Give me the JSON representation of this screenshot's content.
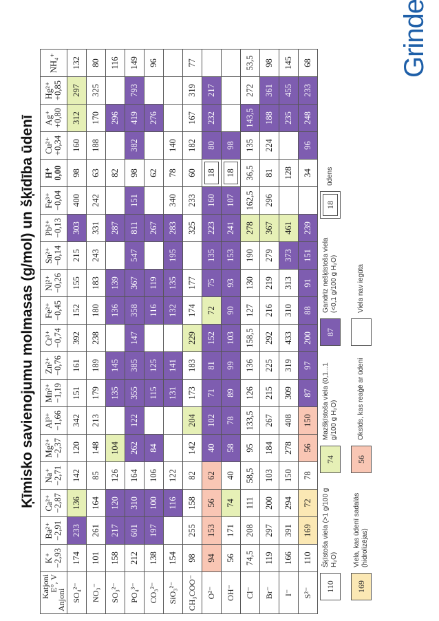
{
  "title": "Ķīmisko savienojumu molmasas (g/mol) un šķīdība ūdenī",
  "logo": "Grindex",
  "corner": {
    "top": "Katjoni",
    "sub": "E°, V",
    "bottom": "Anjoni"
  },
  "cations": [
    {
      "ion": "K⁺",
      "e": "−2,93"
    },
    {
      "ion": "Ba²⁺",
      "e": "−2,91"
    },
    {
      "ion": "Ca²⁺",
      "e": "−2,87"
    },
    {
      "ion": "Na⁺",
      "e": "−2,71"
    },
    {
      "ion": "Mg²⁺",
      "e": "−2,37"
    },
    {
      "ion": "Al³⁺",
      "e": "−1,66"
    },
    {
      "ion": "Mn²⁺",
      "e": "−1,19"
    },
    {
      "ion": "Zn²⁺",
      "e": "−0,76"
    },
    {
      "ion": "Cr³⁺",
      "e": "−0,74"
    },
    {
      "ion": "Fe²⁺",
      "e": "−0,45"
    },
    {
      "ion": "Ni²⁺",
      "e": "−0,26"
    },
    {
      "ion": "Sn²⁺",
      "e": "−0,14"
    },
    {
      "ion": "Pb²⁺",
      "e": "−0,13"
    },
    {
      "ion": "Fe³⁺",
      "e": "−0,04"
    },
    {
      "ion": "H⁺",
      "e": "0,00"
    },
    {
      "ion": "Cu²⁺",
      "e": "+0,34"
    },
    {
      "ion": "Ag⁺",
      "e": "+0,80"
    },
    {
      "ion": "Hg²⁺",
      "e": "+0,85"
    },
    {
      "ion": "NH₄⁺",
      "e": ""
    }
  ],
  "rows": [
    {
      "anion": "SO₄²⁻",
      "cells": [
        [
          "174",
          "s"
        ],
        [
          "233",
          "m"
        ],
        [
          "136",
          "g"
        ],
        [
          "142",
          "s"
        ],
        [
          "120",
          "s"
        ],
        [
          "342",
          "s"
        ],
        [
          "151",
          "s"
        ],
        [
          "161",
          "s"
        ],
        [
          "392",
          "s"
        ],
        [
          "152",
          "s"
        ],
        [
          "155",
          "s"
        ],
        [
          "215",
          "s"
        ],
        [
          "303",
          "m"
        ],
        [
          "400",
          "s"
        ],
        [
          "98",
          "s"
        ],
        [
          "160",
          "s"
        ],
        [
          "312",
          "g"
        ],
        [
          "297",
          "g"
        ],
        [
          "132",
          "s"
        ]
      ]
    },
    {
      "anion": "NO₃⁻",
      "cells": [
        [
          "101",
          "s"
        ],
        [
          "261",
          "s"
        ],
        [
          "164",
          "s"
        ],
        [
          "85",
          "s"
        ],
        [
          "148",
          "s"
        ],
        [
          "213",
          "s"
        ],
        [
          "179",
          "s"
        ],
        [
          "189",
          "s"
        ],
        [
          "238",
          "s"
        ],
        [
          "180",
          "s"
        ],
        [
          "183",
          "s"
        ],
        [
          "243",
          "s"
        ],
        [
          "331",
          "s"
        ],
        [
          "242",
          "s"
        ],
        [
          "63",
          "s"
        ],
        [
          "188",
          "s"
        ],
        [
          "170",
          "s"
        ],
        [
          "325",
          "s"
        ],
        [
          "80",
          "s"
        ]
      ]
    },
    {
      "anion": "SO₃²⁻",
      "cells": [
        [
          "158",
          "s"
        ],
        [
          "217",
          "m"
        ],
        [
          "120",
          "m"
        ],
        [
          "126",
          "s"
        ],
        [
          "104",
          "g"
        ],
        [
          "",
          "n"
        ],
        [
          "135",
          "m"
        ],
        [
          "145",
          "m"
        ],
        [
          "",
          "n"
        ],
        [
          "136",
          "m"
        ],
        [
          "139",
          "m"
        ],
        [
          "",
          "n"
        ],
        [
          "287",
          "m"
        ],
        [
          "",
          "n"
        ],
        [
          "82",
          "s"
        ],
        [
          "",
          "n"
        ],
        [
          "296",
          "m"
        ],
        [
          "",
          "n"
        ],
        [
          "116",
          "s"
        ]
      ]
    },
    {
      "anion": "PO₄³⁻",
      "cells": [
        [
          "212",
          "s"
        ],
        [
          "601",
          "m"
        ],
        [
          "310",
          "m"
        ],
        [
          "164",
          "s"
        ],
        [
          "262",
          "m"
        ],
        [
          "122",
          "m"
        ],
        [
          "355",
          "m"
        ],
        [
          "385",
          "m"
        ],
        [
          "147",
          "m"
        ],
        [
          "358",
          "m"
        ],
        [
          "367",
          "m"
        ],
        [
          "547",
          "m"
        ],
        [
          "811",
          "m"
        ],
        [
          "151",
          "m"
        ],
        [
          "98",
          "s"
        ],
        [
          "382",
          "m"
        ],
        [
          "419",
          "m"
        ],
        [
          "793",
          "m"
        ],
        [
          "149",
          "s"
        ]
      ]
    },
    {
      "anion": "CO₃²⁻",
      "cells": [
        [
          "138",
          "s"
        ],
        [
          "197",
          "m"
        ],
        [
          "100",
          "m"
        ],
        [
          "106",
          "s"
        ],
        [
          "84",
          "m"
        ],
        [
          "",
          "n"
        ],
        [
          "115",
          "m"
        ],
        [
          "125",
          "m"
        ],
        [
          "",
          "n"
        ],
        [
          "116",
          "m"
        ],
        [
          "119",
          "m"
        ],
        [
          "",
          "n"
        ],
        [
          "267",
          "m"
        ],
        [
          "",
          "n"
        ],
        [
          "62",
          "s"
        ],
        [
          "",
          "n"
        ],
        [
          "276",
          "m"
        ],
        [
          "",
          "n"
        ],
        [
          "96",
          "s"
        ]
      ]
    },
    {
      "anion": "SiO₃²⁻",
      "cells": [
        [
          "154",
          "s"
        ],
        [
          "",
          "n"
        ],
        [
          "116",
          "m"
        ],
        [
          "122",
          "s"
        ],
        [
          "",
          "n"
        ],
        [
          "",
          "n"
        ],
        [
          "131",
          "m"
        ],
        [
          "141",
          "m"
        ],
        [
          "",
          "n"
        ],
        [
          "132",
          "m"
        ],
        [
          "135",
          "m"
        ],
        [
          "195",
          "m"
        ],
        [
          "283",
          "m"
        ],
        [
          "340",
          "s"
        ],
        [
          "78",
          "s"
        ],
        [
          "140",
          "s"
        ],
        [
          "",
          "n"
        ],
        [
          "",
          "n"
        ],
        [
          "",
          "n"
        ]
      ]
    },
    {
      "anion": "CH₃COO⁻",
      "cells": [
        [
          "98",
          "s"
        ],
        [
          "255",
          "s"
        ],
        [
          "158",
          "s"
        ],
        [
          "82",
          "s"
        ],
        [
          "142",
          "s"
        ],
        [
          "204",
          "g"
        ],
        [
          "173",
          "s"
        ],
        [
          "183",
          "s"
        ],
        [
          "229",
          "g"
        ],
        [
          "174",
          "s"
        ],
        [
          "177",
          "s"
        ],
        [
          "",
          "n"
        ],
        [
          "325",
          "s"
        ],
        [
          "233",
          "s"
        ],
        [
          "60",
          "s"
        ],
        [
          "182",
          "s"
        ],
        [
          "167",
          "s"
        ],
        [
          "319",
          "s"
        ],
        [
          "77",
          "s"
        ]
      ]
    },
    {
      "anion": "O²⁻",
      "cells": [
        [
          "94",
          "o"
        ],
        [
          "153",
          "o"
        ],
        [
          "56",
          "o"
        ],
        [
          "62",
          "o"
        ],
        [
          "40",
          "m"
        ],
        [
          "102",
          "m"
        ],
        [
          "71",
          "m"
        ],
        [
          "81",
          "m"
        ],
        [
          "152",
          "m"
        ],
        [
          "72",
          "g"
        ],
        [
          "75",
          "m"
        ],
        [
          "135",
          "m"
        ],
        [
          "223",
          "m"
        ],
        [
          "160",
          "m"
        ],
        [
          "18",
          "w"
        ],
        [
          "80",
          "m"
        ],
        [
          "232",
          "m"
        ],
        [
          "217",
          "m"
        ],
        [
          "",
          "n"
        ]
      ]
    },
    {
      "anion": "OH⁻",
      "cells": [
        [
          "56",
          "s"
        ],
        [
          "171",
          "s"
        ],
        [
          "74",
          "g"
        ],
        [
          "40",
          "s"
        ],
        [
          "58",
          "m"
        ],
        [
          "78",
          "m"
        ],
        [
          "89",
          "m"
        ],
        [
          "99",
          "m"
        ],
        [
          "103",
          "m"
        ],
        [
          "90",
          "m"
        ],
        [
          "93",
          "m"
        ],
        [
          "153",
          "m"
        ],
        [
          "241",
          "m"
        ],
        [
          "107",
          "m"
        ],
        [
          "18",
          "w"
        ],
        [
          "98",
          "m"
        ],
        [
          "",
          "n"
        ],
        [
          "",
          "n"
        ],
        [
          "",
          "n"
        ]
      ]
    },
    {
      "anion": "Cl⁻",
      "cells": [
        [
          "74,5",
          "s"
        ],
        [
          "208",
          "s"
        ],
        [
          "111",
          "s"
        ],
        [
          "58,5",
          "s"
        ],
        [
          "95",
          "s"
        ],
        [
          "133,5",
          "s"
        ],
        [
          "126",
          "s"
        ],
        [
          "136",
          "s"
        ],
        [
          "158,5",
          "s"
        ],
        [
          "127",
          "s"
        ],
        [
          "130",
          "s"
        ],
        [
          "190",
          "s"
        ],
        [
          "278",
          "g"
        ],
        [
          "162,5",
          "s"
        ],
        [
          "36,5",
          "s"
        ],
        [
          "135",
          "s"
        ],
        [
          "143,5",
          "m"
        ],
        [
          "272",
          "s"
        ],
        [
          "53,5",
          "s"
        ]
      ]
    },
    {
      "anion": "Br⁻",
      "cells": [
        [
          "119",
          "s"
        ],
        [
          "297",
          "s"
        ],
        [
          "200",
          "s"
        ],
        [
          "103",
          "s"
        ],
        [
          "184",
          "s"
        ],
        [
          "267",
          "s"
        ],
        [
          "215",
          "s"
        ],
        [
          "225",
          "s"
        ],
        [
          "292",
          "s"
        ],
        [
          "216",
          "s"
        ],
        [
          "219",
          "s"
        ],
        [
          "279",
          "s"
        ],
        [
          "367",
          "g"
        ],
        [
          "296",
          "s"
        ],
        [
          "81",
          "s"
        ],
        [
          "224",
          "s"
        ],
        [
          "188",
          "m"
        ],
        [
          "361",
          "m"
        ],
        [
          "98",
          "s"
        ]
      ]
    },
    {
      "anion": "I⁻",
      "cells": [
        [
          "166",
          "s"
        ],
        [
          "391",
          "s"
        ],
        [
          "294",
          "s"
        ],
        [
          "150",
          "s"
        ],
        [
          "278",
          "s"
        ],
        [
          "408",
          "s"
        ],
        [
          "309",
          "s"
        ],
        [
          "319",
          "s"
        ],
        [
          "433",
          "s"
        ],
        [
          "310",
          "s"
        ],
        [
          "313",
          "s"
        ],
        [
          "373",
          "m"
        ],
        [
          "461",
          "g"
        ],
        [
          "",
          "n"
        ],
        [
          "128",
          "s"
        ],
        [
          "",
          "n"
        ],
        [
          "235",
          "m"
        ],
        [
          "455",
          "m"
        ],
        [
          "145",
          "s"
        ]
      ]
    },
    {
      "anion": "S²⁻",
      "cells": [
        [
          "110",
          "s"
        ],
        [
          "169",
          "y"
        ],
        [
          "72",
          "y"
        ],
        [
          "78",
          "s"
        ],
        [
          "56",
          "o"
        ],
        [
          "150",
          "o"
        ],
        [
          "87",
          "m"
        ],
        [
          "97",
          "m"
        ],
        [
          "200",
          "m"
        ],
        [
          "88",
          "m"
        ],
        [
          "91",
          "m"
        ],
        [
          "151",
          "m"
        ],
        [
          "239",
          "m"
        ],
        [
          "",
          "n"
        ],
        [
          "34",
          "s"
        ],
        [
          "96",
          "m"
        ],
        [
          "248",
          "m"
        ],
        [
          "233",
          "m"
        ],
        [
          "68",
          "s"
        ]
      ]
    }
  ],
  "legend": {
    "soluble": {
      "value": "110",
      "text": "Šķīstoša viela (>1 g/100 g H₂O)"
    },
    "hydrolysis": {
      "value": "169",
      "text": "Viela, kas ūdenī sadalās (hidrolizējas)"
    },
    "low": {
      "value": "74",
      "text": "Mazšķīstoša viela (0,1...1 g/100 g H₂O)"
    },
    "oxide": {
      "value": "56",
      "text": "Oksīds, kas reaģē ar ūdeni"
    },
    "insoluble": {
      "value": "87",
      "text": "Gandrīz nešķīstoša viela (<0,1 g/100 g H₂O)"
    },
    "none": {
      "value": "",
      "text": "Viela nav iegūta"
    },
    "water": {
      "value": "18",
      "text": "ūdens"
    }
  }
}
